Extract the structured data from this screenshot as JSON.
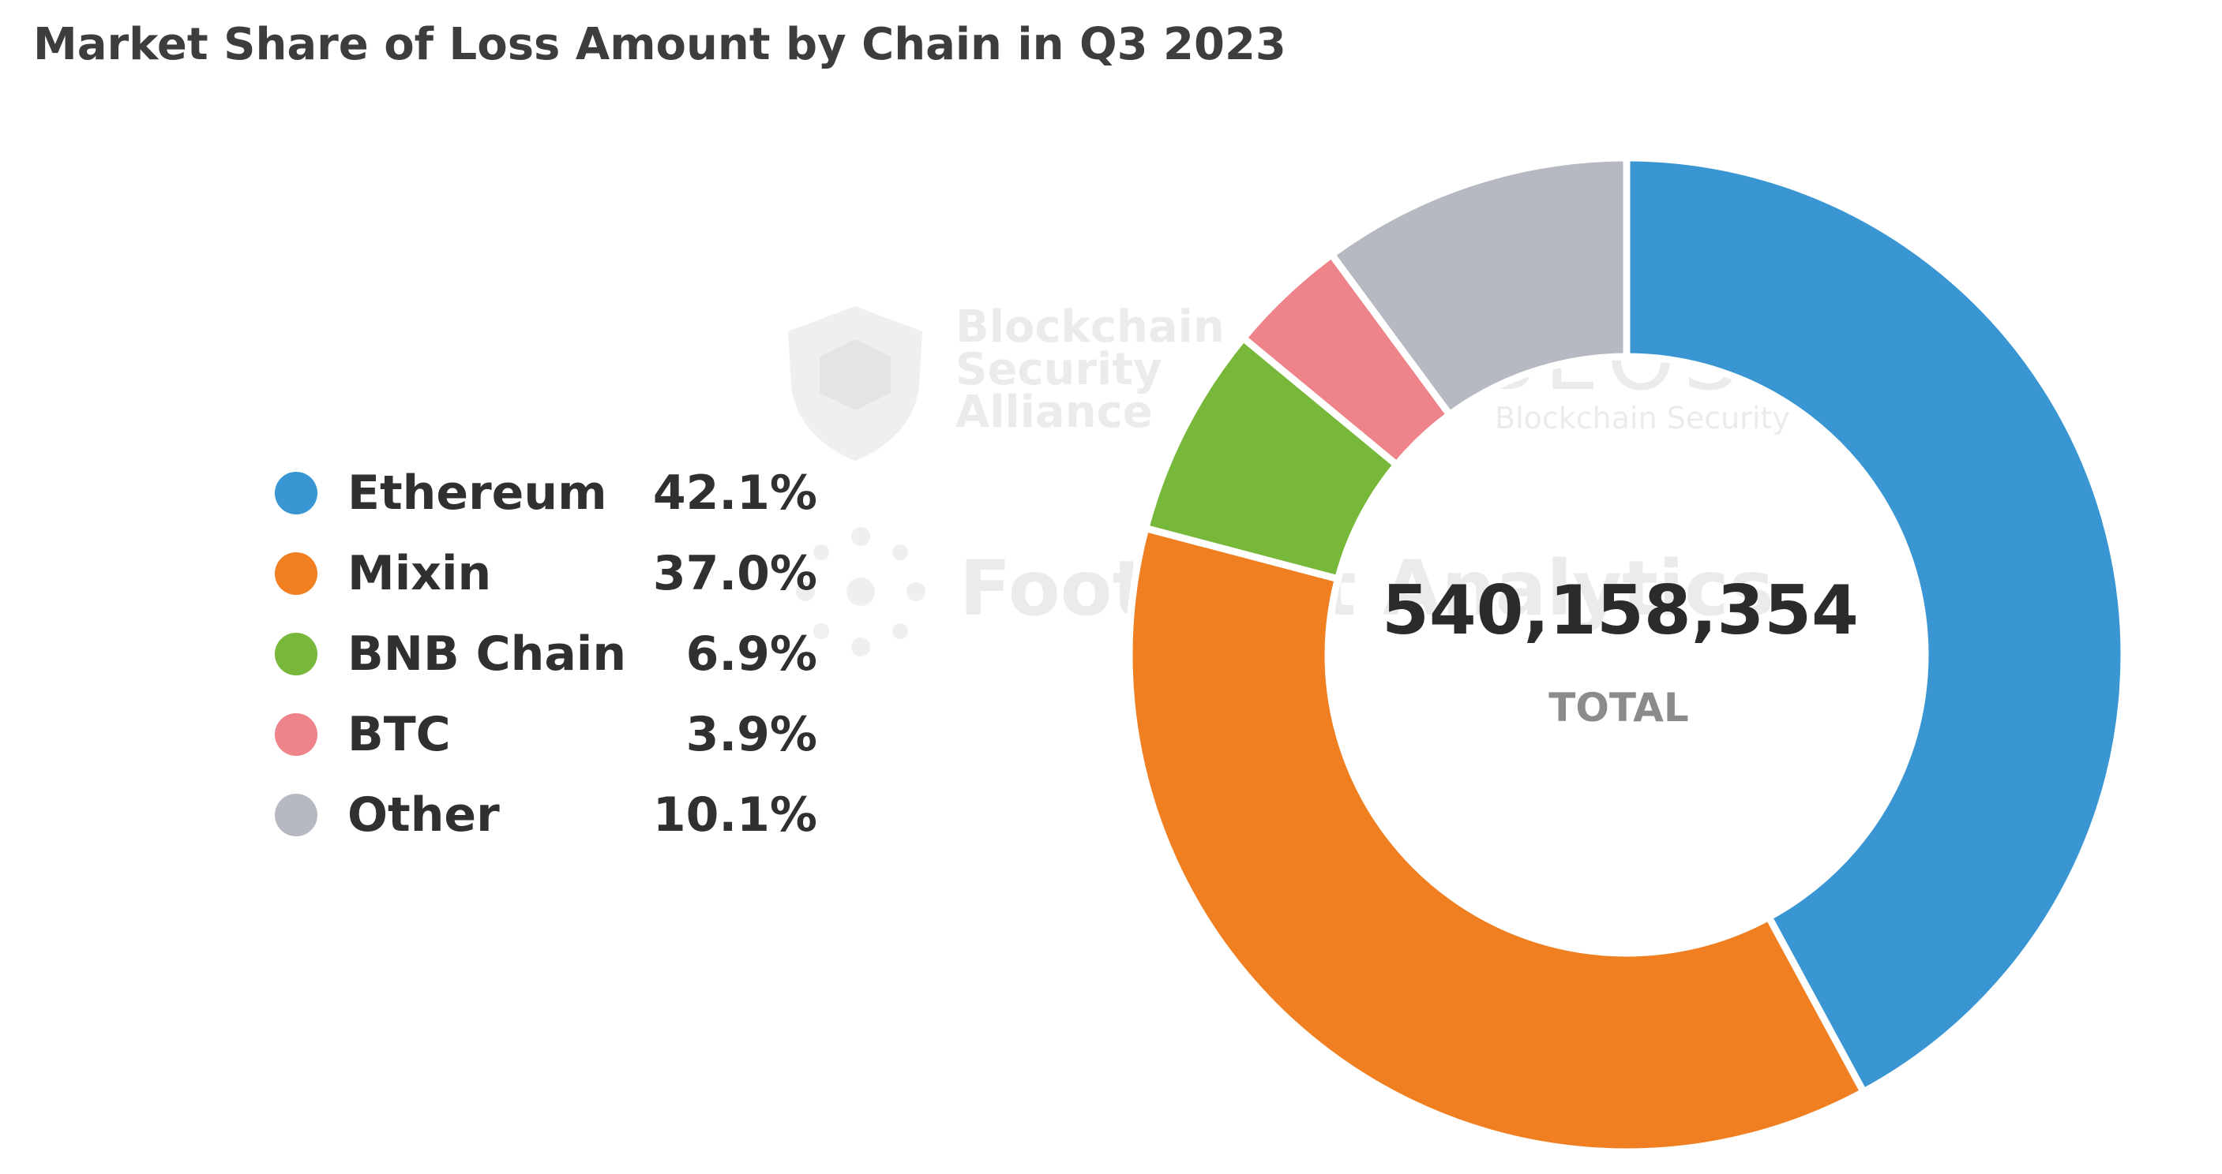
{
  "title": "Market Share of Loss Amount by Chain in Q3 2023",
  "watermarks": {
    "bsa_line1": "Blockchain",
    "bsa_line2": "Security",
    "bsa_line3": "Alliance",
    "beosin": "BEOSIN",
    "beosin_sub": "Blockchain Security",
    "footprint": "Footprint Analytics"
  },
  "chart_data": {
    "type": "pie",
    "donut": true,
    "legend_position": "left",
    "total": "540,158,354",
    "total_label": "TOTAL",
    "slices": [
      {
        "name": "Ethereum",
        "value": 42.1,
        "label": "42.1%",
        "color": "#3996d3"
      },
      {
        "name": "Mixin",
        "value": 37.0,
        "label": "37.0%",
        "color": "#f07f21"
      },
      {
        "name": "BNB Chain",
        "value": 6.9,
        "label": "6.9%",
        "color": "#77b739"
      },
      {
        "name": "BTC",
        "value": 3.9,
        "label": "3.9%",
        "color": "#ee8389"
      },
      {
        "name": "Other",
        "value": 10.1,
        "label": "10.1%",
        "color": "#b6b9c2"
      }
    ]
  }
}
